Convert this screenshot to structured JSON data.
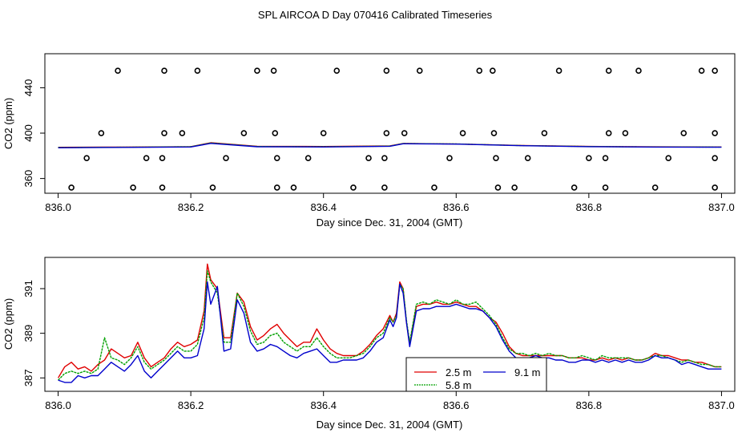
{
  "title": "SPL AIRCOA D  Day 070416  Calibrated Timeseries",
  "chart_data": [
    {
      "type": "line",
      "xlabel": "Day since Dec. 31, 2004 (GMT)",
      "ylabel": "CO2 (ppm)",
      "xlim": [
        835.98,
        837.02
      ],
      "ylim": [
        347,
        470
      ],
      "xticks": [
        "836.0",
        "836.2",
        "836.4",
        "836.6",
        "836.8",
        "837.0"
      ],
      "xtick_values": [
        836.0,
        836.2,
        836.4,
        836.6,
        836.8,
        837.0
      ],
      "yticks": [
        "360",
        "400",
        "440"
      ],
      "ytick_values": [
        360,
        400,
        440
      ],
      "series": [
        {
          "name": "2.5 m",
          "color": "#e00000",
          "x": [
            836.0,
            836.1,
            836.2,
            836.23,
            836.3,
            836.4,
            836.5,
            836.52,
            836.6,
            836.7,
            836.8,
            836.9,
            837.0
          ],
          "y": [
            387.5,
            387.7,
            388.1,
            391.5,
            388.4,
            388.2,
            388.7,
            390.9,
            390.4,
            389.1,
            388.3,
            387.9,
            387.8
          ]
        },
        {
          "name": "5.8 m",
          "color": "#00a000",
          "x": [
            836.0,
            836.1,
            836.2,
            836.23,
            836.3,
            836.4,
            836.5,
            836.52,
            836.6,
            836.7,
            836.8,
            836.9,
            837.0
          ],
          "y": [
            387.3,
            387.6,
            388.0,
            391.3,
            388.2,
            388.0,
            388.6,
            390.8,
            390.5,
            389.0,
            388.2,
            387.8,
            387.7
          ]
        },
        {
          "name": "9.1 m",
          "color": "#0000cc",
          "x": [
            836.0,
            836.1,
            836.2,
            836.23,
            836.3,
            836.4,
            836.5,
            836.52,
            836.6,
            836.7,
            836.8,
            836.9,
            837.0
          ],
          "y": [
            387.1,
            387.4,
            387.8,
            391.0,
            388.0,
            387.8,
            388.4,
            390.6,
            390.3,
            388.9,
            388.1,
            387.7,
            387.6
          ]
        }
      ],
      "calibration_points": {
        "name": "calibration standards",
        "x": [
          836.09,
          836.16,
          836.21,
          836.3,
          836.325,
          836.42,
          836.495,
          836.545,
          836.635,
          836.655,
          836.755,
          836.83,
          836.875,
          836.97,
          836.99,
          836.065,
          836.16,
          836.187,
          836.28,
          836.327,
          836.4,
          836.495,
          836.522,
          836.61,
          836.657,
          836.733,
          836.83,
          836.855,
          836.943,
          836.99,
          836.043,
          836.133,
          836.157,
          836.253,
          836.33,
          836.377,
          836.468,
          836.492,
          836.59,
          836.66,
          836.708,
          836.8,
          836.825,
          836.92,
          836.99,
          836.02,
          836.113,
          836.157,
          836.233,
          836.33,
          836.355,
          836.445,
          836.492,
          836.567,
          836.663,
          836.688,
          836.778,
          836.825,
          836.9,
          836.99
        ],
        "y": [
          455,
          455,
          455,
          455,
          455,
          455,
          455,
          455,
          455,
          455,
          455,
          455,
          455,
          455,
          455,
          400,
          400,
          400,
          400,
          400,
          400,
          400,
          400,
          400,
          400,
          400,
          400,
          400,
          400,
          400,
          378,
          378,
          378,
          378,
          378,
          378,
          378,
          378,
          378,
          378,
          378,
          378,
          378,
          378,
          378,
          352,
          352,
          352,
          352,
          352,
          352,
          352,
          352,
          352,
          352,
          352,
          352,
          352,
          352,
          352
        ]
      }
    },
    {
      "type": "line",
      "xlabel": "Day since Dec. 31, 2004 (GMT)",
      "ylabel": "CO2 (ppm)",
      "xlim": [
        835.98,
        837.02
      ],
      "ylim": [
        386.4,
        392.4
      ],
      "xticks": [
        "836.0",
        "836.2",
        "836.4",
        "836.6",
        "836.8",
        "837.0"
      ],
      "xtick_values": [
        836.0,
        836.2,
        836.4,
        836.6,
        836.8,
        837.0
      ],
      "yticks": [
        "387",
        "389",
        "391"
      ],
      "ytick_values": [
        387,
        389,
        391
      ],
      "legend": {
        "position": "bottom-center",
        "entries": [
          "2.5 m",
          "9.1 m",
          "5.8 m"
        ]
      },
      "series": [
        {
          "name": "2.5 m",
          "color": "#e00000",
          "x": [
            836.0,
            836.01,
            836.02,
            836.03,
            836.04,
            836.05,
            836.06,
            836.07,
            836.08,
            836.09,
            836.1,
            836.11,
            836.12,
            836.13,
            836.14,
            836.15,
            836.16,
            836.17,
            836.18,
            836.19,
            836.2,
            836.21,
            836.22,
            836.225,
            836.23,
            836.24,
            836.25,
            836.26,
            836.27,
            836.28,
            836.29,
            836.3,
            836.31,
            836.32,
            836.33,
            836.34,
            836.35,
            836.36,
            836.37,
            836.38,
            836.39,
            836.4,
            836.41,
            836.42,
            836.43,
            836.44,
            836.45,
            836.46,
            836.47,
            836.48,
            836.49,
            836.5,
            836.505,
            836.51,
            836.515,
            836.52,
            836.525,
            836.53,
            836.54,
            836.55,
            836.56,
            836.57,
            836.58,
            836.59,
            836.6,
            836.61,
            836.62,
            836.63,
            836.64,
            836.65,
            836.66,
            836.67,
            836.68,
            836.69,
            836.7,
            836.71,
            836.72,
            836.73,
            836.74,
            836.75,
            836.76,
            836.77,
            836.78,
            836.79,
            836.8,
            836.81,
            836.82,
            836.83,
            836.84,
            836.85,
            836.86,
            836.87,
            836.88,
            836.89,
            836.9,
            836.91,
            836.92,
            836.93,
            836.94,
            836.95,
            836.96,
            836.97,
            836.98,
            836.99,
            837.0
          ],
          "y": [
            387.0,
            387.5,
            387.7,
            387.4,
            387.5,
            387.3,
            387.6,
            387.8,
            388.3,
            388.1,
            387.9,
            388.0,
            388.6,
            387.9,
            387.5,
            387.7,
            387.9,
            388.3,
            388.6,
            388.4,
            388.5,
            388.7,
            390.0,
            392.1,
            391.4,
            391.0,
            388.8,
            388.8,
            390.8,
            390.4,
            389.3,
            388.7,
            388.9,
            389.2,
            389.4,
            389.0,
            388.7,
            388.4,
            388.6,
            388.6,
            389.2,
            388.7,
            388.3,
            388.1,
            388.0,
            388.0,
            388.0,
            388.2,
            388.5,
            388.9,
            389.2,
            389.8,
            389.5,
            389.9,
            391.3,
            391.0,
            389.5,
            388.5,
            390.2,
            390.3,
            390.3,
            390.4,
            390.3,
            390.3,
            390.4,
            390.3,
            390.2,
            390.2,
            390.0,
            389.7,
            389.5,
            389.0,
            388.4,
            388.1,
            388.0,
            388.0,
            388.0,
            388.0,
            388.0,
            388.0,
            388.0,
            387.9,
            387.9,
            387.9,
            387.8,
            387.8,
            387.9,
            387.8,
            387.9,
            387.8,
            387.9,
            387.8,
            387.8,
            387.9,
            388.1,
            388.0,
            388.0,
            387.9,
            387.8,
            387.8,
            387.7,
            387.7,
            387.6,
            387.5,
            387.5
          ]
        },
        {
          "name": "5.8 m",
          "color": "#00a000",
          "x": [
            836.0,
            836.01,
            836.02,
            836.03,
            836.04,
            836.05,
            836.06,
            836.07,
            836.08,
            836.09,
            836.1,
            836.11,
            836.12,
            836.13,
            836.14,
            836.15,
            836.16,
            836.17,
            836.18,
            836.19,
            836.2,
            836.21,
            836.22,
            836.225,
            836.23,
            836.24,
            836.25,
            836.26,
            836.27,
            836.28,
            836.29,
            836.3,
            836.31,
            836.32,
            836.33,
            836.34,
            836.35,
            836.36,
            836.37,
            836.38,
            836.39,
            836.4,
            836.41,
            836.42,
            836.43,
            836.44,
            836.45,
            836.46,
            836.47,
            836.48,
            836.49,
            836.5,
            836.505,
            836.51,
            836.515,
            836.52,
            836.525,
            836.53,
            836.54,
            836.55,
            836.56,
            836.57,
            836.58,
            836.59,
            836.6,
            836.61,
            836.62,
            836.63,
            836.64,
            836.65,
            836.66,
            836.67,
            836.68,
            836.69,
            836.7,
            836.71,
            836.72,
            836.73,
            836.74,
            836.75,
            836.76,
            836.77,
            836.78,
            836.79,
            836.8,
            836.81,
            836.82,
            836.83,
            836.84,
            836.85,
            836.86,
            836.87,
            836.88,
            836.89,
            836.9,
            836.91,
            836.92,
            836.93,
            836.94,
            836.95,
            836.96,
            836.97,
            836.98,
            836.99,
            837.0
          ],
          "y": [
            386.9,
            387.2,
            387.3,
            387.2,
            387.3,
            387.2,
            387.4,
            388.8,
            387.9,
            387.8,
            387.6,
            387.9,
            388.4,
            387.7,
            387.4,
            387.6,
            387.8,
            388.1,
            388.4,
            388.2,
            388.2,
            388.5,
            389.7,
            391.8,
            391.3,
            390.8,
            388.6,
            388.6,
            390.8,
            390.2,
            389.1,
            388.5,
            388.6,
            388.9,
            389.0,
            388.6,
            388.4,
            388.2,
            388.4,
            388.4,
            388.8,
            388.4,
            388.1,
            387.9,
            387.9,
            387.9,
            388.0,
            388.1,
            388.4,
            388.8,
            389.0,
            389.7,
            389.5,
            389.8,
            391.2,
            391.0,
            389.6,
            388.6,
            390.3,
            390.4,
            390.3,
            390.5,
            390.4,
            390.3,
            390.5,
            390.3,
            390.3,
            390.4,
            390.1,
            389.8,
            389.4,
            388.8,
            388.3,
            388.1,
            388.1,
            388.0,
            388.1,
            388.0,
            388.1,
            388.0,
            388.0,
            387.9,
            387.9,
            388.0,
            387.9,
            387.8,
            388.0,
            387.9,
            387.9,
            387.9,
            387.9,
            387.8,
            387.8,
            387.9,
            388.0,
            388.0,
            387.9,
            387.8,
            387.7,
            387.8,
            387.7,
            387.6,
            387.6,
            387.5,
            387.5
          ]
        },
        {
          "name": "9.1 m",
          "color": "#0000cc",
          "x": [
            836.0,
            836.01,
            836.02,
            836.03,
            836.04,
            836.05,
            836.06,
            836.07,
            836.08,
            836.09,
            836.1,
            836.11,
            836.12,
            836.13,
            836.14,
            836.15,
            836.16,
            836.17,
            836.18,
            836.19,
            836.2,
            836.21,
            836.22,
            836.225,
            836.23,
            836.24,
            836.25,
            836.26,
            836.27,
            836.28,
            836.29,
            836.3,
            836.31,
            836.32,
            836.33,
            836.34,
            836.35,
            836.36,
            836.37,
            836.38,
            836.39,
            836.4,
            836.41,
            836.42,
            836.43,
            836.44,
            836.45,
            836.46,
            836.47,
            836.48,
            836.49,
            836.5,
            836.505,
            836.51,
            836.515,
            836.52,
            836.525,
            836.53,
            836.54,
            836.55,
            836.56,
            836.57,
            836.58,
            836.59,
            836.6,
            836.61,
            836.62,
            836.63,
            836.64,
            836.65,
            836.66,
            836.67,
            836.68,
            836.69,
            836.7,
            836.71,
            836.72,
            836.73,
            836.74,
            836.75,
            836.76,
            836.77,
            836.78,
            836.79,
            836.8,
            836.81,
            836.82,
            836.83,
            836.84,
            836.85,
            836.86,
            836.87,
            836.88,
            836.89,
            836.9,
            836.91,
            836.92,
            836.93,
            836.94,
            836.95,
            836.96,
            836.97,
            836.98,
            836.99,
            837.0
          ],
          "y": [
            386.9,
            386.8,
            386.8,
            387.1,
            387.0,
            387.1,
            387.1,
            387.4,
            387.7,
            387.5,
            387.3,
            387.6,
            388.0,
            387.3,
            387.0,
            387.3,
            387.6,
            387.9,
            388.2,
            387.9,
            387.9,
            388.0,
            389.2,
            391.3,
            390.3,
            391.1,
            388.2,
            388.3,
            390.5,
            389.9,
            388.6,
            388.2,
            388.3,
            388.5,
            388.4,
            388.2,
            388.0,
            387.9,
            388.1,
            388.2,
            388.3,
            388.0,
            387.7,
            387.7,
            387.8,
            387.8,
            387.8,
            387.9,
            388.2,
            388.6,
            388.8,
            389.6,
            389.3,
            389.7,
            391.2,
            390.8,
            389.5,
            388.4,
            390.0,
            390.1,
            390.1,
            390.2,
            390.2,
            390.2,
            390.3,
            390.2,
            390.1,
            390.1,
            390.0,
            389.7,
            389.3,
            388.7,
            388.2,
            387.9,
            387.9,
            387.9,
            388.0,
            387.9,
            387.9,
            387.8,
            387.8,
            387.7,
            387.7,
            387.8,
            387.8,
            387.7,
            387.8,
            387.7,
            387.8,
            387.7,
            387.8,
            387.7,
            387.7,
            387.8,
            388.0,
            387.9,
            387.9,
            387.8,
            387.6,
            387.7,
            387.6,
            387.5,
            387.4,
            387.4,
            387.4
          ]
        }
      ]
    }
  ]
}
